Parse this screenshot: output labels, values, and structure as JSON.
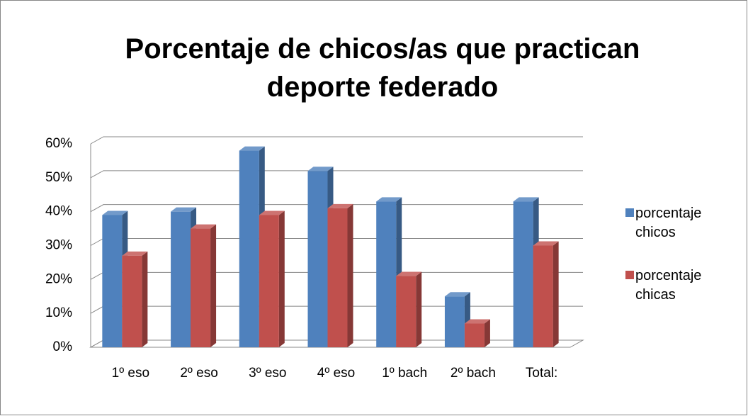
{
  "chart_data": {
    "type": "bar3d",
    "title": "Porcentaje de chicos/as que practican deporte federado",
    "categories": [
      "1º eso",
      "2º eso",
      "3º eso",
      "4º eso",
      "1º bach",
      "2º bach",
      "Total:"
    ],
    "series": [
      {
        "name": "porcentaje chicos",
        "color": "#4f81bd",
        "values": [
          39,
          40,
          58,
          52,
          43,
          15,
          43
        ]
      },
      {
        "name": "porcentaje chicas",
        "color": "#c0504d",
        "values": [
          27,
          35,
          39,
          41,
          21,
          7,
          30
        ]
      }
    ],
    "ylim": [
      0,
      60
    ],
    "yticks": [
      {
        "value": 0,
        "label": "0%"
      },
      {
        "value": 10,
        "label": "10%"
      },
      {
        "value": 20,
        "label": "20%"
      },
      {
        "value": 30,
        "label": "30%"
      },
      {
        "value": 40,
        "label": "40%"
      },
      {
        "value": 50,
        "label": "50%"
      },
      {
        "value": 60,
        "label": "60%"
      }
    ],
    "grid": true,
    "legend": "right"
  }
}
